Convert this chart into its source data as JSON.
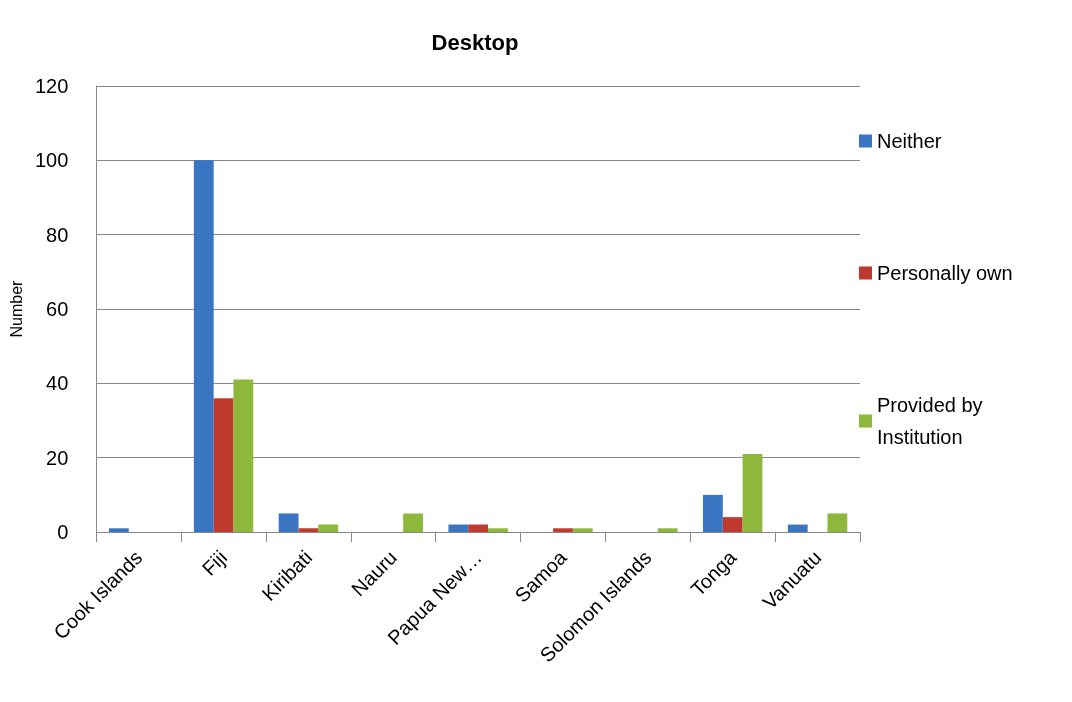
{
  "chart_data": {
    "type": "bar",
    "title": "Desktop",
    "ylabel": "Number",
    "categories": [
      "Cook Islands",
      "Fiji",
      "Kiribati",
      "Nauru",
      "Papua New…",
      "Samoa",
      "Solomon Islands",
      "Tonga",
      "Vanuatu"
    ],
    "series": [
      {
        "name": "Neither",
        "color": "#3a75c4",
        "values": [
          1,
          100,
          5,
          0,
          2,
          0,
          0,
          10,
          2
        ]
      },
      {
        "name": "Personally own",
        "color": "#c0392f",
        "values": [
          0,
          36,
          1,
          0,
          2,
          1,
          0,
          4,
          0
        ]
      },
      {
        "name": "Provided by Institution",
        "color": "#8db83c",
        "values": [
          0,
          41,
          2,
          5,
          1,
          1,
          1,
          21,
          5
        ]
      }
    ],
    "ylim": [
      0,
      120
    ],
    "yticks": [
      0,
      20,
      40,
      60,
      80,
      100,
      120
    ],
    "grid": "y",
    "legend": "right"
  }
}
